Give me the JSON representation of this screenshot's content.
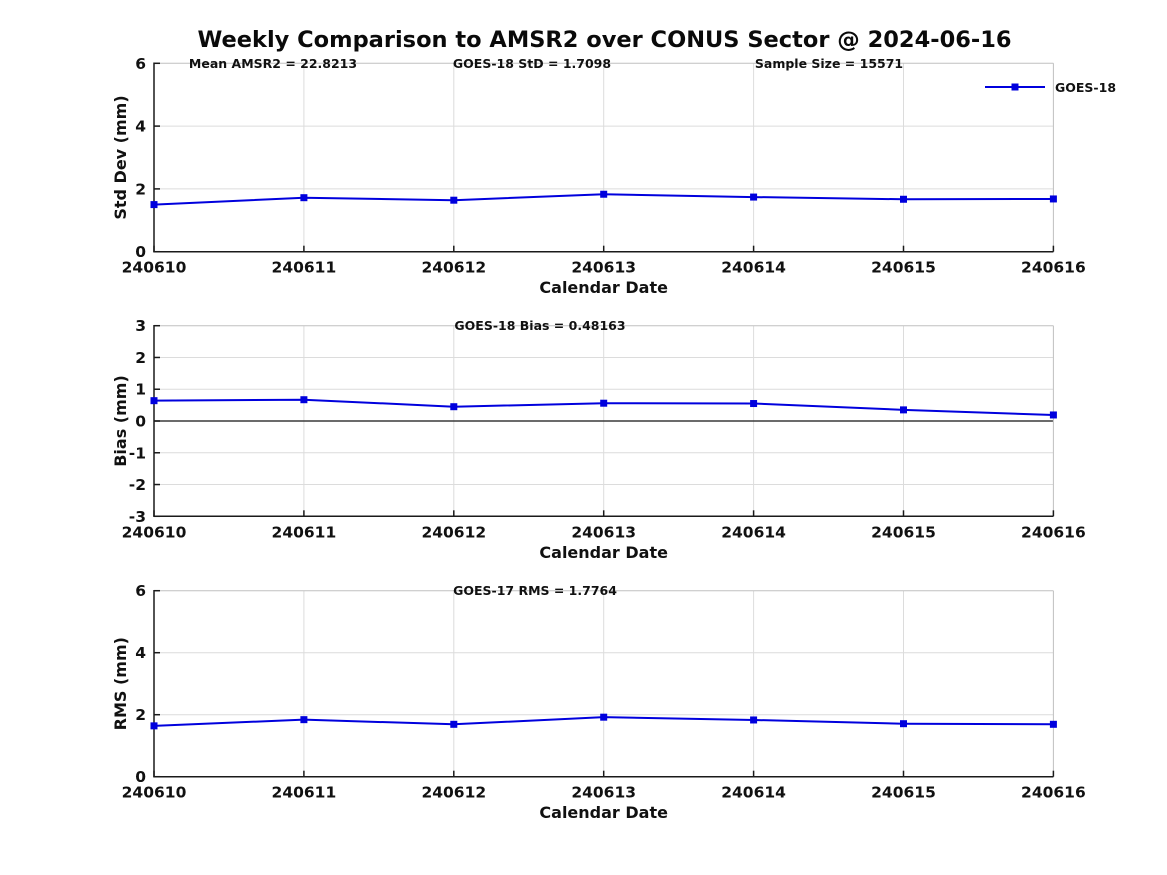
{
  "figure": {
    "title": "Weekly Comparison to AMSR2 over CONUS Sector @ 2024-06-16",
    "legend": {
      "label": "GOES-18",
      "color": "#0000dd",
      "marker": "filled-square"
    }
  },
  "colors": {
    "series_blue": "#0000dd",
    "grid": "#dcdcdc",
    "box_light": "#c0c0c0",
    "axis_dark": "#1a1a1a",
    "zero_line": "#3a3a3a"
  },
  "chart_data": [
    {
      "type": "line",
      "name": "std-dev",
      "annotations": [
        "Mean AMSR2 = 22.8213",
        "GOES-18 StD = 1.7098",
        "Sample Size = 15571"
      ],
      "categories": [
        "240610",
        "240611",
        "240612",
        "240613",
        "240614",
        "240615",
        "240616"
      ],
      "series": [
        {
          "name": "GOES-18",
          "color": "#0000dd",
          "marker": "square",
          "values": [
            1.5,
            1.72,
            1.64,
            1.83,
            1.74,
            1.67,
            1.68
          ]
        }
      ],
      "xlabel": "Calendar Date",
      "ylabel": "Std Dev (mm)",
      "ylim": [
        0,
        6
      ],
      "yticks": [
        0,
        2,
        4,
        6
      ],
      "grid": true,
      "zero_line": false,
      "legend_position": "top-right"
    },
    {
      "type": "line",
      "name": "bias",
      "annotations": [
        "GOES-18 Bias  = 0.48163"
      ],
      "categories": [
        "240610",
        "240611",
        "240612",
        "240613",
        "240614",
        "240615",
        "240616"
      ],
      "series": [
        {
          "name": "GOES-18",
          "color": "#0000dd",
          "marker": "square",
          "values": [
            0.64,
            0.67,
            0.45,
            0.56,
            0.55,
            0.35,
            0.19
          ]
        }
      ],
      "xlabel": "Calendar Date",
      "ylabel": "Bias (mm)",
      "ylim": [
        -3,
        3
      ],
      "yticks": [
        -3,
        -2,
        -1,
        0,
        1,
        2,
        3
      ],
      "grid": true,
      "zero_line": true,
      "legend_position": "none"
    },
    {
      "type": "line",
      "name": "rms",
      "annotations": [
        "GOES-17 RMS = 1.7764"
      ],
      "categories": [
        "240610",
        "240611",
        "240612",
        "240613",
        "240614",
        "240615",
        "240616"
      ],
      "series": [
        {
          "name": "GOES-18",
          "color": "#0000dd",
          "marker": "square",
          "values": [
            1.64,
            1.84,
            1.69,
            1.92,
            1.83,
            1.71,
            1.69
          ]
        }
      ],
      "xlabel": "Calendar Date",
      "ylabel": "RMS (mm)",
      "ylim": [
        0,
        6
      ],
      "yticks": [
        0,
        2,
        4,
        6
      ],
      "grid": true,
      "zero_line": false,
      "legend_position": "none"
    }
  ]
}
